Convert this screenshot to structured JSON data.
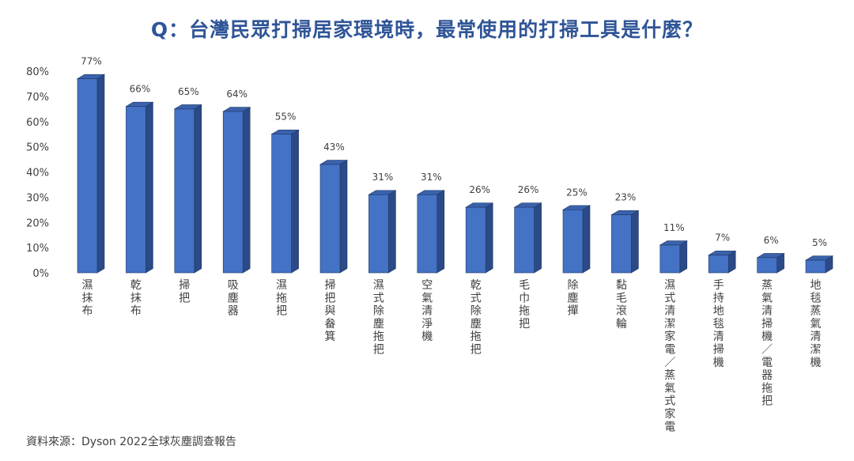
{
  "chart_data": {
    "type": "bar",
    "title": "Q：台灣民眾打掃居家環境時，最常使用的打掃工具是什麼？",
    "categories": [
      "濕抹布",
      "乾抹布",
      "掃把",
      "吸塵器",
      "濕拖把",
      "掃把與畚箕",
      "濕式除塵拖把",
      "空氣清淨機",
      "乾式除塵拖把",
      "毛巾拖把",
      "除塵撣",
      "黏毛滾輪",
      "濕式清潔家電／蒸氣式家電",
      "手持地毯清掃機",
      "蒸氣清掃機／電器拖把",
      "地毯蒸氣清潔機"
    ],
    "values": [
      77,
      66,
      65,
      64,
      55,
      43,
      31,
      31,
      26,
      26,
      25,
      23,
      11,
      7,
      6,
      5
    ],
    "value_labels": [
      "77%",
      "66%",
      "65%",
      "64%",
      "55%",
      "43%",
      "31%",
      "31%",
      "26%",
      "26%",
      "25%",
      "23%",
      "11%",
      "7%",
      "6%",
      "5%"
    ],
    "y_ticks": [
      "0%",
      "10%",
      "20%",
      "30%",
      "40%",
      "50%",
      "60%",
      "70%",
      "80%"
    ],
    "ylim": [
      0,
      80
    ],
    "grid": false,
    "legend": "none",
    "colors": {
      "front": "#4472c4",
      "side": "#2b4a87",
      "top": "#3a62ad",
      "outline": "#1f3864",
      "title": "#2f5597"
    }
  },
  "source": "資料來源：Dyson 2022全球灰塵調查報告"
}
